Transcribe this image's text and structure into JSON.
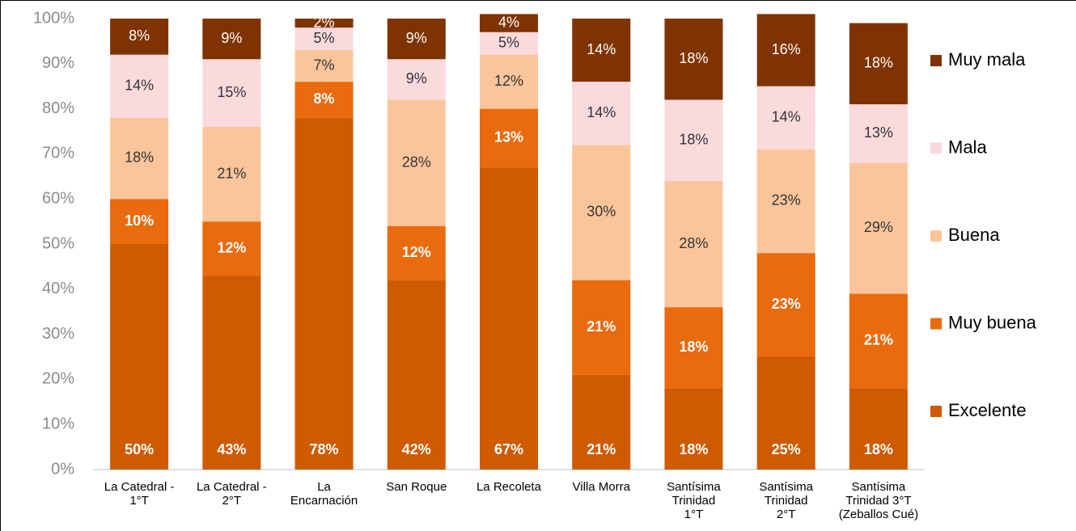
{
  "chart_data": {
    "type": "stacked_bar_100",
    "categories": [
      "La  Catedral -\n1°T",
      "La  Catedral -\n2°T",
      "La\nEncarnación",
      "San Roque",
      "La  Recoleta",
      "Villa Morra",
      "Santísima\nTrinidad\n1°T",
      "Santísima\nTrinidad\n2°T",
      "Santísima\nTrinidad 3°T\n(Zeballos Cué)"
    ],
    "series": [
      {
        "name": "Excelente",
        "color": "#d05a00",
        "label_color": "#ffffff",
        "label_bold": true,
        "label_position": "inside_base",
        "values": [
          50,
          43,
          78,
          42,
          67,
          21,
          18,
          25,
          18
        ],
        "value_labels": [
          "50%",
          "43%",
          "78%",
          "42%",
          "67%",
          "21%",
          "18%",
          "25%",
          "18%"
        ]
      },
      {
        "name": "Muy buena",
        "color": "#ea6a0e",
        "label_color": "#ffffff",
        "label_bold": true,
        "label_position": "center",
        "values": [
          10,
          12,
          8,
          12,
          13,
          21,
          18,
          23,
          21
        ],
        "value_labels": [
          "10%",
          "12%",
          "8%",
          "12%",
          "13%",
          "21%",
          "18%",
          "23%",
          "21%"
        ]
      },
      {
        "name": "Buena",
        "color": "#fbc59b",
        "label_color": "#333333",
        "label_bold": false,
        "label_position": "center",
        "values": [
          18,
          21,
          7,
          28,
          12,
          30,
          28,
          23,
          29
        ],
        "value_labels": [
          "18%",
          "21%",
          "7%",
          "28%",
          "12%",
          "30%",
          "28%",
          "23%",
          "29%"
        ]
      },
      {
        "name": "Mala",
        "color": "#fadadc",
        "label_color": "#333333",
        "label_bold": false,
        "label_position": "center",
        "values": [
          14,
          15,
          5,
          9,
          5,
          14,
          18,
          14,
          13
        ],
        "value_labels": [
          "14%",
          "15%",
          "5%",
          "9%",
          "5%",
          "14%",
          "18%",
          "14%",
          "13%"
        ]
      },
      {
        "name": "Muy mala",
        "color": "#7f3300",
        "label_color": "#ffffff",
        "label_bold": false,
        "label_position": "center",
        "values": [
          8,
          9,
          2,
          9,
          4,
          14,
          18,
          16,
          18
        ],
        "value_labels": [
          "8%",
          "9%",
          "2%",
          "9%",
          "4%",
          "14%",
          "18%",
          "16%",
          "18%"
        ]
      }
    ],
    "ylim": [
      0,
      100
    ],
    "yticks": [
      {
        "value": 0,
        "label": "0%"
      },
      {
        "value": 10,
        "label": "10%"
      },
      {
        "value": 20,
        "label": "20%"
      },
      {
        "value": 30,
        "label": "30%"
      },
      {
        "value": 40,
        "label": "40%"
      },
      {
        "value": 50,
        "label": "50%"
      },
      {
        "value": 60,
        "label": "60%"
      },
      {
        "value": 70,
        "label": "70%"
      },
      {
        "value": 80,
        "label": "80%"
      },
      {
        "value": 90,
        "label": "90%"
      },
      {
        "value": 100,
        "label": "100%"
      }
    ],
    "grid": false,
    "legend": "right"
  }
}
